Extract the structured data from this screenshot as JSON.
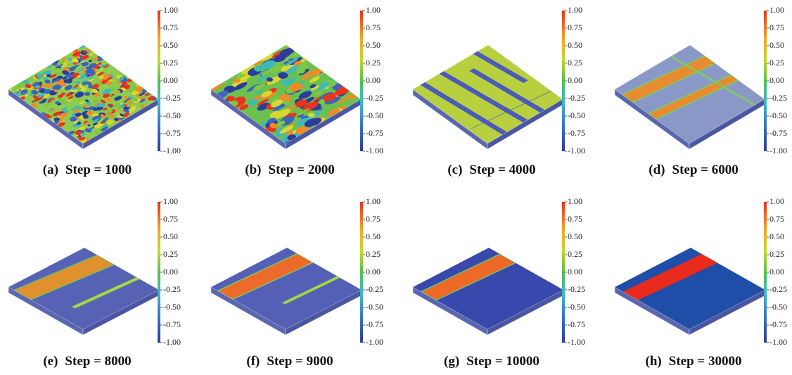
{
  "panels": [
    {
      "label": "(a)",
      "caption": "Step = 1000"
    },
    {
      "label": "(b)",
      "caption": "Step = 2000"
    },
    {
      "label": "(c)",
      "caption": "Step = 4000"
    },
    {
      "label": "(d)",
      "caption": "Step = 6000"
    },
    {
      "label": "(e)",
      "caption": "Step = 8000"
    },
    {
      "label": "(f)",
      "caption": "Step = 9000"
    },
    {
      "label": "(g)",
      "caption": "Step = 10000"
    },
    {
      "label": "(h)",
      "caption": "Step = 30000"
    }
  ],
  "colorbar": {
    "ticks": [
      {
        "value": 1,
        "label": "1.00"
      },
      {
        "value": 0.75,
        "label": "0.75"
      },
      {
        "value": 0.5,
        "label": "0.50"
      },
      {
        "value": 0.25,
        "label": "0.25"
      },
      {
        "value": 0,
        "label": "0.00"
      },
      {
        "value": -0.25,
        "label": "-0.25"
      },
      {
        "value": -0.5,
        "label": "-0.50"
      },
      {
        "value": -0.75,
        "label": "-0.75"
      },
      {
        "value": -1,
        "label": "-1.00"
      }
    ]
  }
}
